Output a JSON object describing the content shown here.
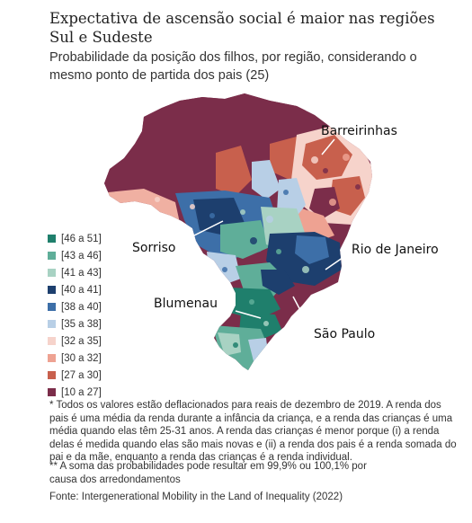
{
  "title": "Expectativa de ascensão social é maior nas regiões Sul e Sudeste",
  "subtitle": "Probabilidade da posição dos filhos, por região, considerando o mesmo ponto de partida dos pais (25)",
  "legend": [
    {
      "label": "[46 a 51]",
      "color": "#1f7f6c"
    },
    {
      "label": "[43 a 46]",
      "color": "#5fae99"
    },
    {
      "label": "[41 a 43]",
      "color": "#a8d2c3"
    },
    {
      "label": "[40 a 41]",
      "color": "#1d3f6e"
    },
    {
      "label": "[38 a 40]",
      "color": "#3d6fa8"
    },
    {
      "label": "[35 a 38]",
      "color": "#b8cfe6"
    },
    {
      "label": "[32 a 35]",
      "color": "#f6d3cb"
    },
    {
      "label": "[30 a 32]",
      "color": "#eea292"
    },
    {
      "label": "[27 a 30]",
      "color": "#c8604d"
    },
    {
      "label": "[10 a 27]",
      "color": "#7b2d4a"
    }
  ],
  "callouts": {
    "barreirinhas": "Barreirinhas",
    "sorriso": "Sorriso",
    "rio": "Rio de Janeiro",
    "blumenau": "Blumenau",
    "sao_paulo": "São Paulo"
  },
  "notes": {
    "note1": "* Todos os valores estão deflacionados para reais de dezembro de 2019. A renda dos pais é uma média da renda durante a infância da criança, e a renda das crianças é uma média quando elas têm 25-31 anos. A renda das crianças é menor porque (i) a renda delas é medida quando elas são mais novas e (ii) a renda dos pais é a renda somada do pai e da mãe, enquanto a renda das crianças é a renda individual.",
    "note2": "** A soma das probabilidades pode resultar em 99,9% ou 100,1% por causa dos arredondamentos",
    "source": "Fonte: Intergenerational Mobility in the Land of Inequality (2022)"
  }
}
